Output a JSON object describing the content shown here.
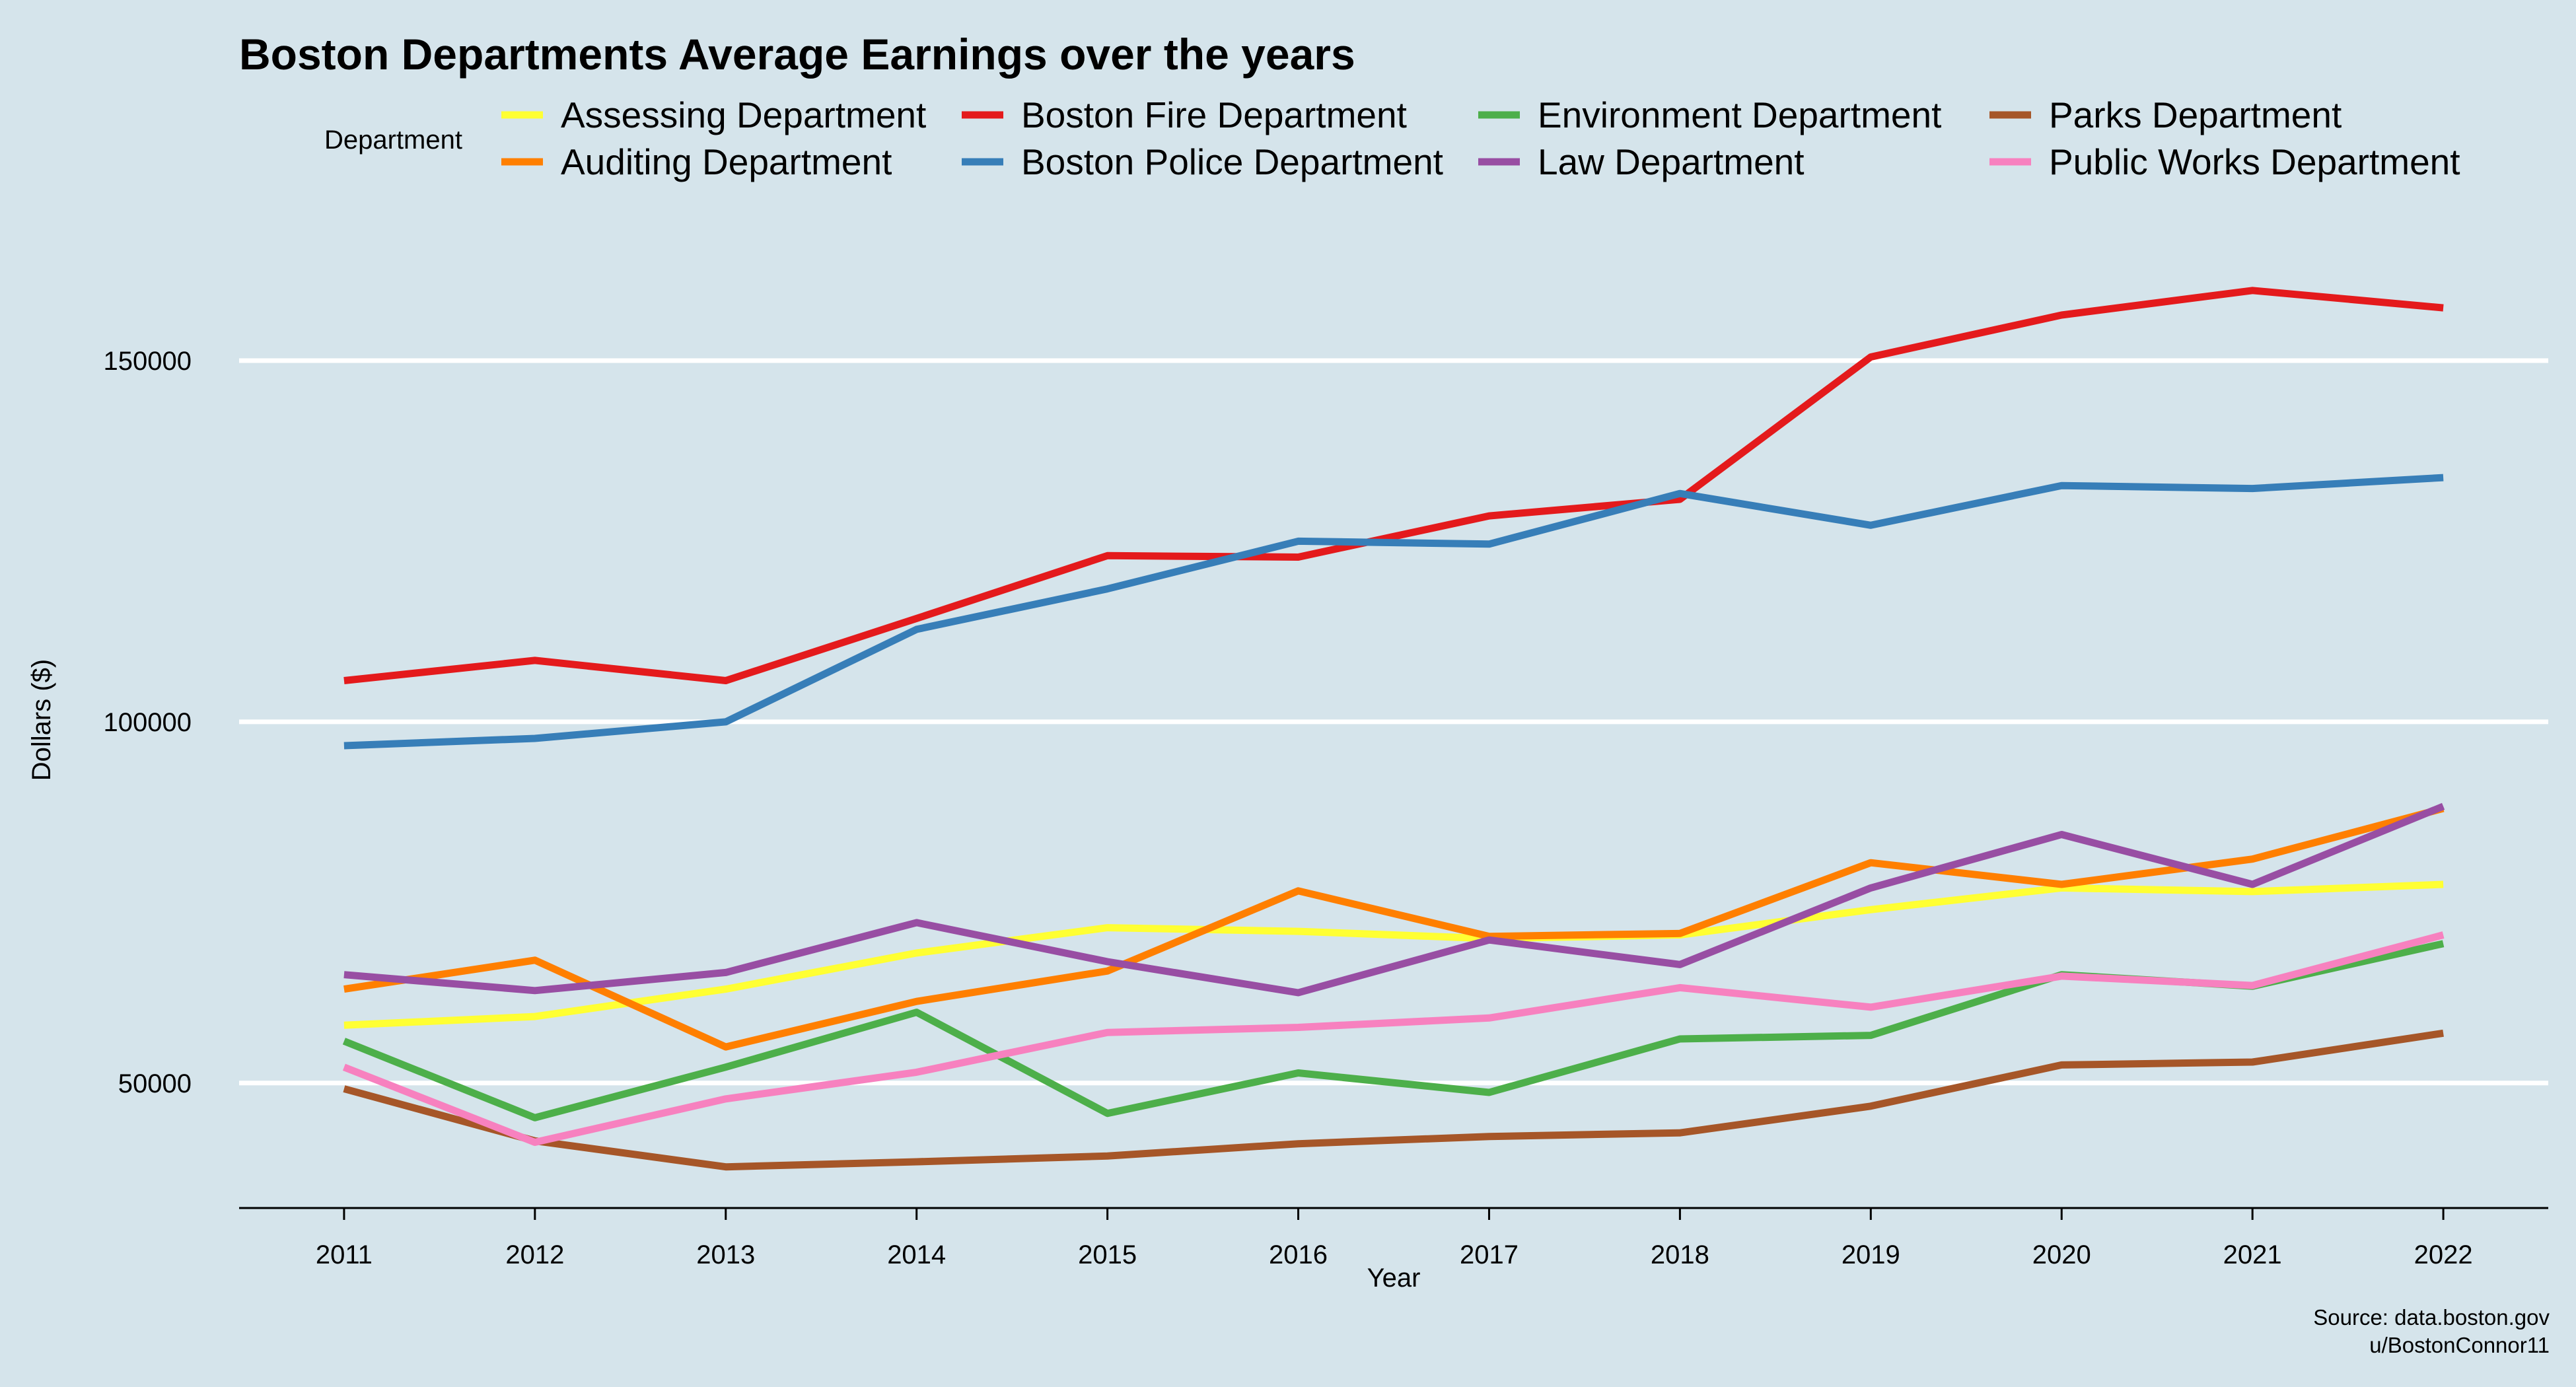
{
  "chart_data": {
    "type": "line",
    "title": "Boston Departments Average Earnings over the years",
    "xlabel": "Year",
    "ylabel": "Dollars ($)",
    "legend_title": "Department",
    "legend_position": "top",
    "grid": "horizontal major lines only",
    "caption_lines": [
      "Source: data.boston.gov",
      "u/BostonConnor11"
    ],
    "x": [
      2011,
      2012,
      2013,
      2014,
      2015,
      2016,
      2017,
      2018,
      2019,
      2020,
      2021,
      2022
    ],
    "xlim": [
      2010.45,
      2022.55
    ],
    "ylim": [
      32700,
      167000
    ],
    "yticks": [
      50000,
      100000,
      150000
    ],
    "series": [
      {
        "name": "Assessing Department",
        "color": "#ffff33",
        "values": [
          58000,
          59200,
          63000,
          68000,
          71500,
          71000,
          70000,
          70500,
          74000,
          77000,
          76500,
          77500
        ]
      },
      {
        "name": "Auditing Department",
        "color": "#ff7f00",
        "values": [
          63000,
          67000,
          55000,
          61300,
          65500,
          76600,
          70300,
          70700,
          80500,
          77500,
          81000,
          88000
        ]
      },
      {
        "name": "Boston Fire Department",
        "color": "#e41a1c",
        "values": [
          105700,
          108500,
          105700,
          114300,
          123000,
          122800,
          128500,
          130800,
          150500,
          156300,
          159700,
          157300
        ]
      },
      {
        "name": "Boston Police Department",
        "color": "#377eb8",
        "values": [
          96700,
          97700,
          100000,
          112800,
          118400,
          125000,
          124600,
          131600,
          127200,
          132700,
          132300,
          133800
        ]
      },
      {
        "name": "Environment Department",
        "color": "#4daf4a",
        "values": [
          55800,
          45200,
          52200,
          59800,
          45800,
          51400,
          48700,
          56100,
          56600,
          65000,
          63400,
          69300
        ]
      },
      {
        "name": "Law Department",
        "color": "#984ea3",
        "values": [
          65000,
          62800,
          65300,
          72200,
          66800,
          62500,
          69800,
          66400,
          77000,
          84400,
          77500,
          88300
        ]
      },
      {
        "name": "Parks Department",
        "color": "#a65628",
        "values": [
          49200,
          42000,
          38400,
          39100,
          39900,
          41600,
          42600,
          43100,
          46800,
          52500,
          52900,
          56900
        ]
      },
      {
        "name": "Public Works Department",
        "color": "#f781bf",
        "values": [
          52200,
          41800,
          47800,
          51500,
          57000,
          57700,
          59000,
          63200,
          60500,
          64800,
          63500,
          70500
        ]
      }
    ]
  }
}
